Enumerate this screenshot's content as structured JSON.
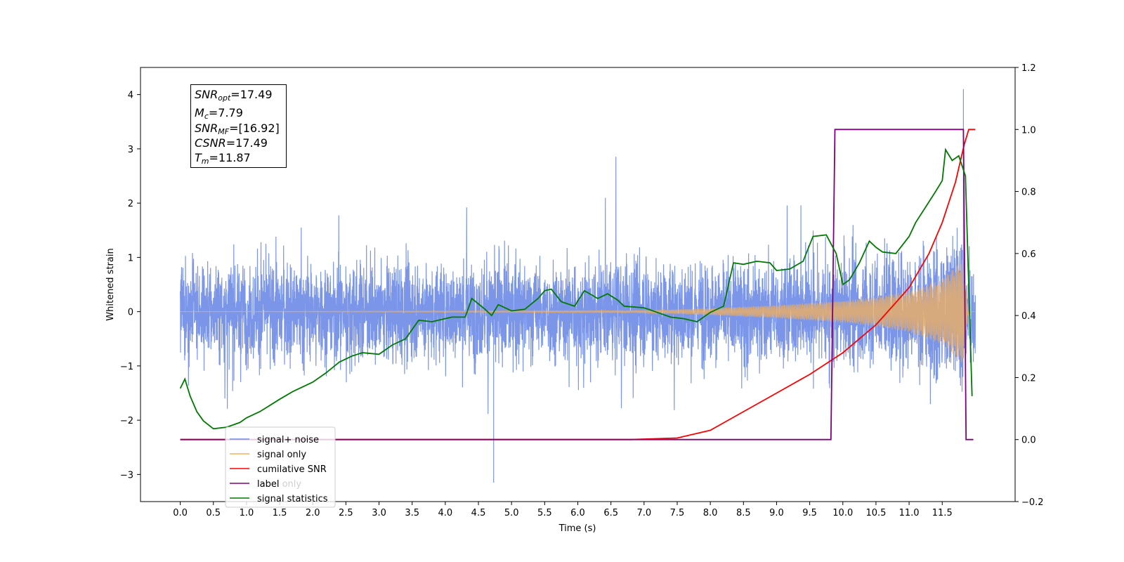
{
  "chart_data": {
    "type": "line",
    "xlabel": "Time (s)",
    "ylabel": "Whitened strain",
    "xlim": [
      -0.6,
      12.6
    ],
    "ylim": [
      -3.5,
      4.5
    ],
    "y2lim": [
      -0.2,
      1.2
    ],
    "x_ticks": [
      "0.0",
      "0.5",
      "1.0",
      "1.5",
      "2.0",
      "2.5",
      "3.0",
      "3.5",
      "4.0",
      "4.5",
      "5.0",
      "5.5",
      "6.0",
      "6.5",
      "7.0",
      "7.5",
      "8.0",
      "8.5",
      "9.0",
      "9.5",
      "10.0",
      "10.5",
      "11.0",
      "11.5"
    ],
    "y_ticks": [
      "4",
      "3",
      "2",
      "1",
      "0",
      "−1",
      "−2",
      "−3"
    ],
    "y2_ticks": [
      "1.2",
      "1.0",
      "0.8",
      "0.6",
      "0.4",
      "0.2",
      "0.0",
      "−0.2"
    ],
    "legend_position": "lower-left",
    "legend": [
      "signal+ noise",
      "signal only",
      "cumilative SNR",
      "label",
      "signal statistics"
    ],
    "legend_hidden_text": "label only",
    "colors": {
      "signal_noise": "#6d8be6",
      "signal_only": "#f5b05a",
      "cumulative_snr": "#ff0000",
      "label": "#7f007f",
      "signal_statistics": "#007a00"
    },
    "annotation": {
      "snr_opt": {
        "sym": "SNR",
        "sub": "opt",
        "value": "=17.49"
      },
      "mc": {
        "sym": "M",
        "sub": "c",
        "value": "=7.79"
      },
      "snr_mf": {
        "sym": "SNR",
        "sub": "MF",
        "value": "=[16.92]"
      },
      "csnr": {
        "sym": "CSNR",
        "sub": "",
        "value": "=17.49"
      },
      "tm": {
        "sym": "T",
        "sub": "m",
        "value": "=11.87"
      }
    },
    "series": [
      {
        "name": "signal+ noise",
        "axis": "left",
        "x_range": [
          0.0,
          12.0
        ],
        "typical_amplitude": 1.5,
        "peak": {
          "x": 11.82,
          "y": 4.1
        },
        "min": {
          "x": 4.73,
          "y": -3.15
        }
      },
      {
        "name": "signal only",
        "axis": "left",
        "chirp": true,
        "x_range": [
          0.0,
          12.0
        ],
        "envelope": [
          [
            0.0,
            0.0
          ],
          [
            7.0,
            0.02
          ],
          [
            8.0,
            0.06
          ],
          [
            9.0,
            0.12
          ],
          [
            10.0,
            0.2
          ],
          [
            10.5,
            0.27
          ],
          [
            11.0,
            0.38
          ],
          [
            11.5,
            0.6
          ],
          [
            11.8,
            0.95
          ],
          [
            11.9,
            0.0
          ]
        ]
      },
      {
        "name": "cumilative SNR",
        "axis": "right",
        "points": [
          [
            0.0,
            0.0
          ],
          [
            6.8,
            0.0
          ],
          [
            7.5,
            0.005
          ],
          [
            8.0,
            0.03
          ],
          [
            8.5,
            0.09
          ],
          [
            9.0,
            0.15
          ],
          [
            9.5,
            0.21
          ],
          [
            10.0,
            0.28
          ],
          [
            10.5,
            0.37
          ],
          [
            11.0,
            0.49
          ],
          [
            11.3,
            0.6
          ],
          [
            11.5,
            0.7
          ],
          [
            11.7,
            0.83
          ],
          [
            11.83,
            0.95
          ],
          [
            11.9,
            1.0
          ],
          [
            12.0,
            1.0
          ]
        ]
      },
      {
        "name": "label",
        "axis": "right",
        "points": [
          [
            0.0,
            0.0
          ],
          [
            9.82,
            0.0
          ],
          [
            9.88,
            1.0
          ],
          [
            11.82,
            1.0
          ],
          [
            11.86,
            0.0
          ],
          [
            11.97,
            0.0
          ]
        ]
      },
      {
        "name": "signal statistics",
        "axis": "right",
        "points": [
          [
            0.0,
            0.165
          ],
          [
            0.07,
            0.195
          ],
          [
            0.15,
            0.14
          ],
          [
            0.25,
            0.09
          ],
          [
            0.35,
            0.06
          ],
          [
            0.5,
            0.035
          ],
          [
            0.7,
            0.04
          ],
          [
            0.9,
            0.055
          ],
          [
            1.0,
            0.07
          ],
          [
            1.2,
            0.09
          ],
          [
            1.35,
            0.11
          ],
          [
            1.5,
            0.13
          ],
          [
            1.7,
            0.155
          ],
          [
            2.0,
            0.185
          ],
          [
            2.2,
            0.215
          ],
          [
            2.4,
            0.25
          ],
          [
            2.6,
            0.27
          ],
          [
            2.75,
            0.28
          ],
          [
            3.0,
            0.275
          ],
          [
            3.2,
            0.305
          ],
          [
            3.4,
            0.325
          ],
          [
            3.5,
            0.355
          ],
          [
            3.6,
            0.385
          ],
          [
            3.8,
            0.38
          ],
          [
            3.9,
            0.385
          ],
          [
            4.1,
            0.395
          ],
          [
            4.3,
            0.395
          ],
          [
            4.4,
            0.455
          ],
          [
            4.6,
            0.42
          ],
          [
            4.7,
            0.4
          ],
          [
            4.8,
            0.435
          ],
          [
            5.0,
            0.415
          ],
          [
            5.2,
            0.42
          ],
          [
            5.4,
            0.455
          ],
          [
            5.5,
            0.48
          ],
          [
            5.6,
            0.485
          ],
          [
            5.75,
            0.445
          ],
          [
            5.95,
            0.43
          ],
          [
            6.1,
            0.48
          ],
          [
            6.3,
            0.455
          ],
          [
            6.45,
            0.47
          ],
          [
            6.6,
            0.45
          ],
          [
            6.7,
            0.43
          ],
          [
            7.0,
            0.425
          ],
          [
            7.2,
            0.41
          ],
          [
            7.4,
            0.395
          ],
          [
            7.6,
            0.39
          ],
          [
            7.8,
            0.38
          ],
          [
            8.0,
            0.41
          ],
          [
            8.2,
            0.43
          ],
          [
            8.35,
            0.57
          ],
          [
            8.5,
            0.565
          ],
          [
            8.7,
            0.575
          ],
          [
            8.9,
            0.57
          ],
          [
            9.0,
            0.545
          ],
          [
            9.2,
            0.55
          ],
          [
            9.4,
            0.575
          ],
          [
            9.55,
            0.655
          ],
          [
            9.75,
            0.66
          ],
          [
            9.9,
            0.6
          ],
          [
            10.0,
            0.5
          ],
          [
            10.1,
            0.515
          ],
          [
            10.25,
            0.57
          ],
          [
            10.4,
            0.64
          ],
          [
            10.5,
            0.62
          ],
          [
            10.6,
            0.605
          ],
          [
            10.8,
            0.6
          ],
          [
            11.0,
            0.655
          ],
          [
            11.1,
            0.7
          ],
          [
            11.25,
            0.75
          ],
          [
            11.4,
            0.8
          ],
          [
            11.5,
            0.835
          ],
          [
            11.55,
            0.935
          ],
          [
            11.65,
            0.9
          ],
          [
            11.75,
            0.915
          ],
          [
            11.85,
            0.85
          ],
          [
            11.95,
            0.14
          ]
        ]
      }
    ]
  }
}
